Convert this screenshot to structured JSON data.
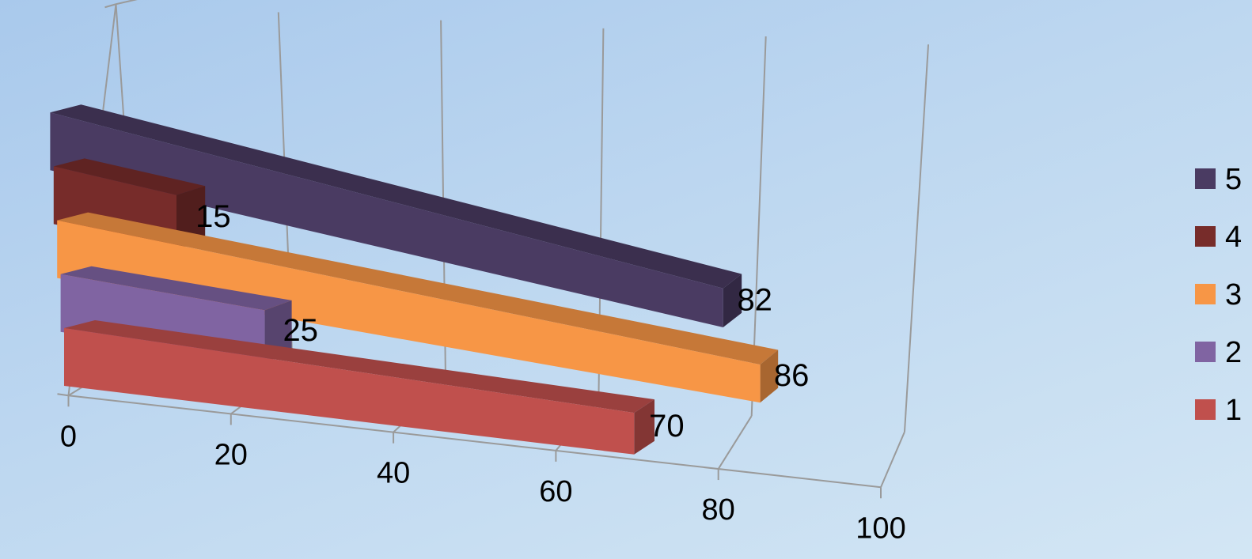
{
  "chart_data": {
    "type": "bar",
    "orientation": "horizontal",
    "style": "3d",
    "xlim": [
      0,
      100
    ],
    "x_ticks": [
      "0",
      "20",
      "40",
      "60",
      "80",
      "100"
    ],
    "grid": true,
    "legend_position": "right",
    "series": [
      {
        "name": "1",
        "value": 70,
        "color": "#c0504d"
      },
      {
        "name": "2",
        "value": 25,
        "color": "#8064a2"
      },
      {
        "name": "3",
        "value": 86,
        "color": "#f79646"
      },
      {
        "name": "4",
        "value": 15,
        "color": "#772c2a"
      },
      {
        "name": "5",
        "value": 82,
        "color": "#4a3b62"
      }
    ],
    "legend_order": [
      "5",
      "4",
      "3",
      "2",
      "1"
    ]
  }
}
